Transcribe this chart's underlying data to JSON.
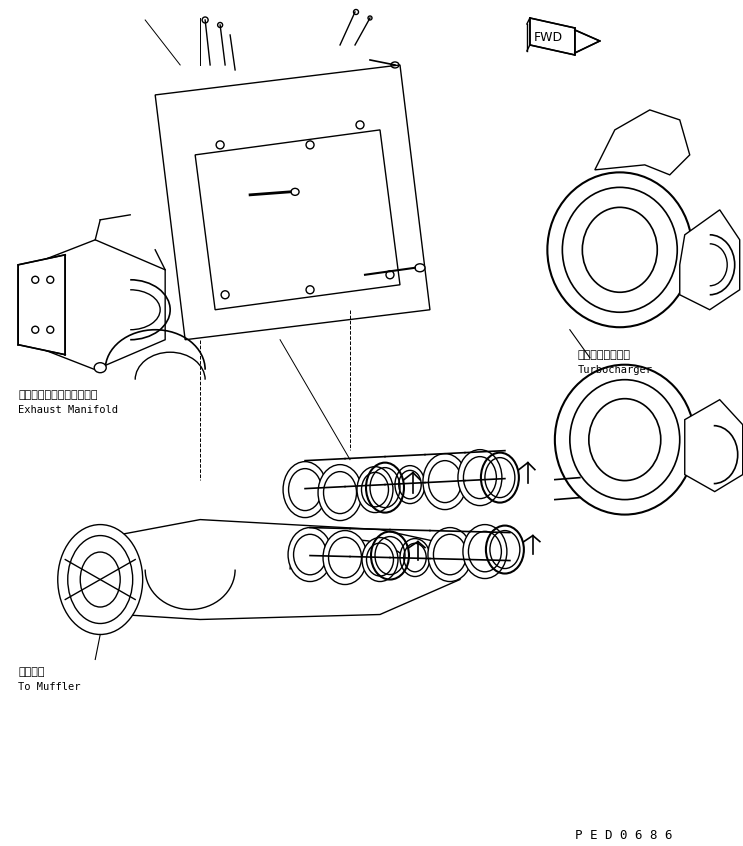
{
  "bg_color": "#ffffff",
  "line_color": "#000000",
  "line_width": 1.0,
  "title_text": "P E D 0 6 8 6",
  "label1_jp": "ターボチャージャ",
  "label1_en": "Turbocharger",
  "label2_jp": "マフラヘ",
  "label2_en": "To Muffler",
  "label3_jp": "エキゾーストマニホールド",
  "label3_en": "Exhaust Manifold",
  "fwd_text": "FWD"
}
